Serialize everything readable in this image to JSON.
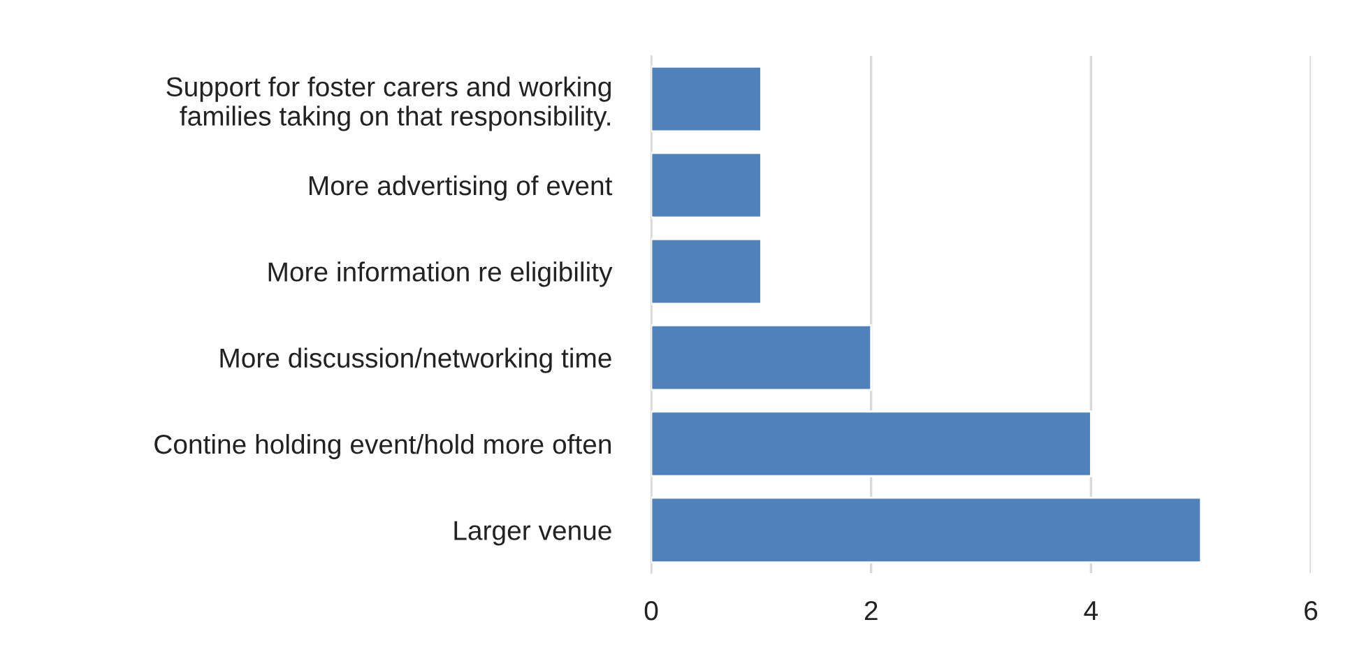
{
  "chart_data": {
    "type": "bar",
    "orientation": "horizontal",
    "categories": [
      "Support for foster carers and working\nfamilies taking on that responsibility.",
      "More advertising of event",
      "More information re eligibility",
      "More discussion/networking time",
      "Contine holding event/hold more often",
      "Larger venue"
    ],
    "values": [
      1,
      1,
      1,
      2,
      4,
      5
    ],
    "color": "#4f81bd",
    "xlim": [
      0,
      6
    ],
    "xticks": [
      0,
      2,
      4,
      6
    ],
    "grid": "x",
    "legend": false
  }
}
